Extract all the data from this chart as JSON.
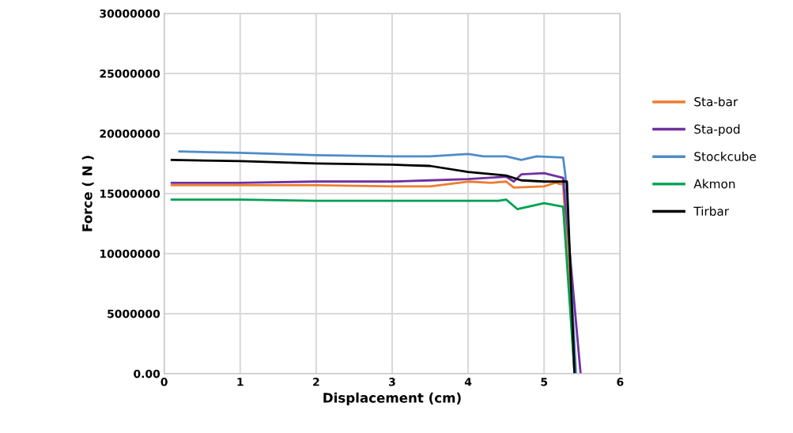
{
  "chart_data": {
    "type": "line",
    "xlabel": "Displacement (cm)",
    "ylabel": "Force ( N )",
    "xlim": [
      0,
      6
    ],
    "xticks": [
      0,
      1,
      2,
      3,
      4,
      5,
      6
    ],
    "ylim": [
      0,
      30000000
    ],
    "yticks": [
      {
        "value": 0,
        "label": "0.00"
      },
      5000000,
      10000000,
      15000000,
      20000000,
      25000000,
      30000000
    ],
    "grid": true,
    "legend": "right",
    "marker": "none",
    "line_style": "solid",
    "series": [
      {
        "name": "Sta-bar",
        "color": "#ed7d31",
        "x": [
          0.1,
          1,
          2,
          3,
          3.5,
          4,
          4.3,
          4.5,
          4.6,
          5.0,
          5.15,
          5.2,
          5.25,
          5.4
        ],
        "values": [
          15700000,
          15700000,
          15700000,
          15600000,
          15600000,
          16000000,
          15900000,
          16000000,
          15500000,
          15600000,
          15900000,
          15800000,
          15800000,
          0
        ]
      },
      {
        "name": "Sta-pod",
        "color": "#7030a0",
        "x": [
          0.1,
          1,
          2,
          3,
          3.5,
          4,
          4.5,
          4.6,
          4.7,
          5.0,
          5.25,
          5.48
        ],
        "values": [
          15900000,
          15900000,
          16000000,
          16000000,
          16100000,
          16200000,
          16400000,
          16000000,
          16600000,
          16700000,
          16300000,
          0
        ]
      },
      {
        "name": "Stockcube",
        "color": "#4f8bc9",
        "x": [
          0.2,
          1,
          2,
          3,
          3.5,
          4,
          4.2,
          4.5,
          4.7,
          4.9,
          5.25,
          5.28,
          5.42
        ],
        "values": [
          18500000,
          18400000,
          18200000,
          18100000,
          18100000,
          18300000,
          18100000,
          18100000,
          17800000,
          18100000,
          18000000,
          16500000,
          0
        ]
      },
      {
        "name": "Akmon",
        "color": "#00a050",
        "x": [
          0.1,
          1,
          2,
          3,
          4,
          4.4,
          4.5,
          4.65,
          5.0,
          5.25,
          5.4
        ],
        "values": [
          14500000,
          14500000,
          14400000,
          14400000,
          14400000,
          14400000,
          14500000,
          13700000,
          14200000,
          13900000,
          0
        ]
      },
      {
        "name": "Tirbar",
        "color": "#000000",
        "x": [
          0.1,
          1,
          2,
          3,
          3.5,
          4,
          4.5,
          4.7,
          5.0,
          5.3,
          5.4
        ],
        "values": [
          17800000,
          17700000,
          17500000,
          17400000,
          17300000,
          16800000,
          16500000,
          16100000,
          16000000,
          16000000,
          0
        ]
      }
    ]
  }
}
